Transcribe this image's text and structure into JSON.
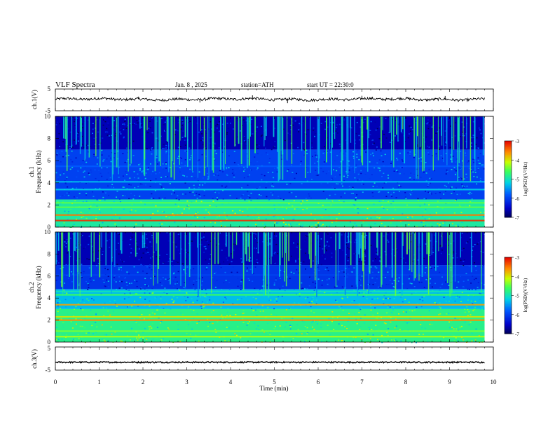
{
  "header": {
    "title": "VLF Spectra",
    "date": "Jan. 8 , 2025",
    "station": "station=ATH",
    "start": "start UT = 22:30:0"
  },
  "chart_data": [
    {
      "type": "line",
      "panel": "ch1-waveform",
      "ylabel": "ch.1(V)",
      "ylim": [
        -5,
        5
      ],
      "yticks": [
        "5",
        "-5"
      ],
      "xlim": [
        0,
        10
      ],
      "x_extent": 9.8,
      "baseline_v": 0.3,
      "noise_amplitude_v": 0.6,
      "spikes": [
        {
          "t": 1.9,
          "dv": 1.2
        },
        {
          "t": 3.3,
          "dv": -1.5
        },
        {
          "t": 4.5,
          "dv": 1.8
        },
        {
          "t": 5.3,
          "dv": -1.8
        },
        {
          "t": 7.0,
          "dv": 1.6
        },
        {
          "t": 8.9,
          "dv": 1.5
        }
      ]
    },
    {
      "type": "heatmap",
      "panel": "ch1-spectrogram",
      "ylabel": "Frequency (kHz)",
      "channel_label": "ch.1",
      "ylim": [
        0,
        10
      ],
      "yticks": [
        "0",
        "2",
        "4",
        "6",
        "8",
        "10"
      ],
      "xlim": [
        0,
        10
      ],
      "x_extent": 9.8,
      "colorbar": {
        "label": "log(PSD)(V²/Hz)",
        "range": [
          -7,
          -3
        ],
        "ticks": [
          "-3",
          "-4",
          "-5",
          "-6",
          "-7"
        ]
      },
      "bands_khz": [
        {
          "f": 0.6,
          "level": -3.2
        },
        {
          "f": 1.1,
          "level": -3.5
        },
        {
          "f": 1.8,
          "level": -4.5
        },
        {
          "f": 2.2,
          "level": -4.5
        },
        {
          "f": 3.4,
          "level": -5.2
        },
        {
          "f": 4.1,
          "level": -5.3
        },
        {
          "f": 5.5,
          "level": -5.8
        }
      ],
      "background_levels": [
        {
          "f_from": 0,
          "f_to": 2.5,
          "level": -4.9
        },
        {
          "f_from": 2.5,
          "f_to": 7,
          "level": -6.0
        },
        {
          "f_from": 7,
          "f_to": 10,
          "level": -6.6
        }
      ]
    },
    {
      "type": "heatmap",
      "panel": "ch2-spectrogram",
      "ylabel": "Frequency (kHz)",
      "channel_label": "ch.2",
      "ylim": [
        0,
        10
      ],
      "yticks": [
        "0",
        "2",
        "4",
        "6",
        "8",
        "10"
      ],
      "xlim": [
        0,
        10
      ],
      "x_extent": 9.8,
      "colorbar": {
        "label": "log(PSD)(V²/Hz)",
        "range": [
          -7,
          -3
        ],
        "ticks": [
          "-3",
          "-4",
          "-5",
          "-6",
          "-7"
        ]
      },
      "bands_khz": [
        {
          "f": 0.5,
          "level": -4.2
        },
        {
          "f": 1.0,
          "level": -4.4
        },
        {
          "f": 2.0,
          "level": -3.6
        },
        {
          "f": 2.3,
          "level": -4.0
        },
        {
          "f": 3.4,
          "level": -3.7
        },
        {
          "f": 4.3,
          "level": -4.6
        },
        {
          "f": 4.6,
          "level": -5.0
        },
        {
          "f": 6.1,
          "level": -6.0
        }
      ],
      "background_levels": [
        {
          "f_from": 0,
          "f_to": 3,
          "level": -4.8
        },
        {
          "f_from": 3,
          "f_to": 4.8,
          "level": -5.3
        },
        {
          "f_from": 4.8,
          "f_to": 7,
          "level": -6.1
        },
        {
          "f_from": 7,
          "f_to": 10,
          "level": -6.6
        }
      ]
    },
    {
      "type": "line",
      "panel": "ch3-waveform",
      "ylabel": "ch.3(V)",
      "ylim": [
        -5,
        5
      ],
      "yticks": [
        "5",
        "-5"
      ],
      "xlim": [
        0,
        10
      ],
      "x_extent": 9.8,
      "baseline_v": -1.6,
      "noise_amplitude_v": 0.3,
      "xlabel": "Time (min)",
      "xticks": [
        "0",
        "1",
        "2",
        "3",
        "4",
        "5",
        "6",
        "7",
        "8",
        "9",
        "10"
      ]
    }
  ]
}
